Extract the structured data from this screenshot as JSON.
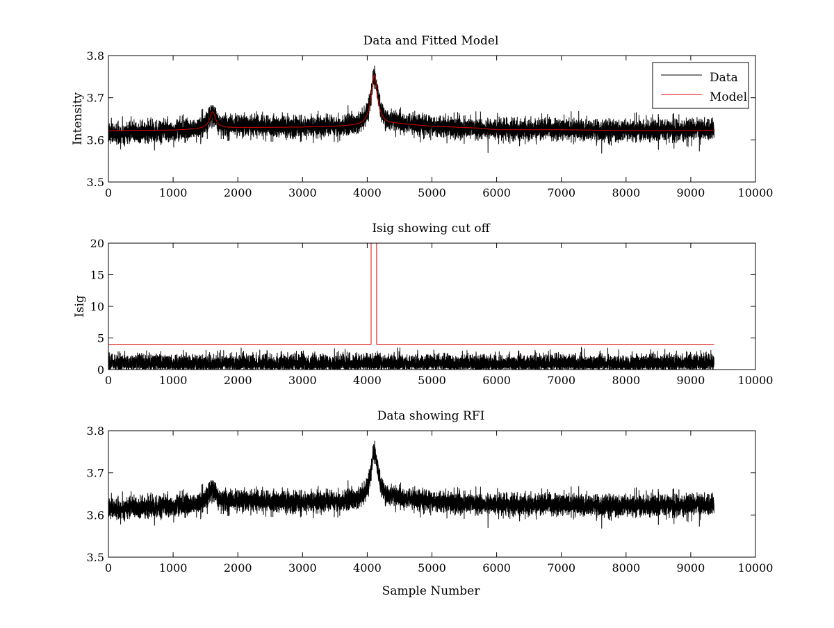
{
  "figure": {
    "background": "#ffffff"
  },
  "colors": {
    "data": "#000000",
    "model": "#e00000",
    "axis": "#000000"
  },
  "chart_data": [
    {
      "type": "line",
      "title": "Data and Fitted Model",
      "xlabel": "",
      "ylabel": "Intensity",
      "xlim": [
        0,
        10000
      ],
      "ylim": [
        3.5,
        3.8
      ],
      "xticks": [
        0,
        1000,
        2000,
        3000,
        4000,
        5000,
        6000,
        7000,
        8000,
        9000,
        10000
      ],
      "yticks": [
        3.5,
        3.6,
        3.7,
        3.8
      ],
      "legend": {
        "location": "top-right",
        "entries": [
          "Data",
          "Model"
        ]
      },
      "series": [
        {
          "name": "Data",
          "color": "#000000",
          "noise": {
            "n_points": 9360,
            "noise_amplitude": 0.012,
            "seed": 7
          },
          "baseline": {
            "x": [
              0,
              1000,
              1500,
              1750,
              2000,
              3000,
              4000,
              4500,
              5000,
              5500,
              6000,
              7000,
              8000,
              9000,
              9360
            ],
            "y": [
              3.615,
              3.62,
              3.628,
              3.633,
              3.633,
              3.63,
              3.632,
              3.64,
              3.632,
              3.628,
              3.624,
              3.626,
              3.622,
              3.624,
              3.625
            ]
          },
          "peaks": [
            {
              "center": 1610,
              "height": 0.035,
              "width": 60
            },
            {
              "center": 4110,
              "height": 0.115,
              "width": 70
            }
          ],
          "x_range": [
            0,
            9360
          ]
        },
        {
          "name": "Model",
          "color": "#e00000",
          "n_points": 9360,
          "baseline": {
            "x": [
              0,
              1000,
              1500,
              2000,
              3000,
              4000,
              4500,
              5000,
              5700,
              6000,
              7000,
              8000,
              9000,
              9360
            ],
            "y": [
              3.622,
              3.623,
              3.626,
              3.629,
              3.63,
              3.633,
              3.637,
              3.632,
              3.628,
              3.624,
              3.624,
              3.622,
              3.622,
              3.623
            ]
          },
          "peaks": [
            {
              "center": 1610,
              "height": 0.04,
              "width": 55
            },
            {
              "center": 4110,
              "height": 0.12,
              "width": 60
            }
          ],
          "x_range": [
            0,
            9360
          ]
        }
      ]
    },
    {
      "type": "line",
      "title": "Isig showing cut off",
      "xlabel": "",
      "ylabel": "Isig",
      "xlim": [
        0,
        10000
      ],
      "ylim": [
        0,
        20
      ],
      "xticks": [
        0,
        1000,
        2000,
        3000,
        4000,
        5000,
        6000,
        7000,
        8000,
        9000,
        10000
      ],
      "yticks": [
        0,
        5,
        10,
        15,
        20
      ],
      "series": [
        {
          "name": "Isig",
          "color": "#000000",
          "noise": {
            "n_points": 9360,
            "mean": 0.9,
            "noise_amplitude": 0.75,
            "max": 4.0,
            "seed": 13
          },
          "x_range": [
            0,
            9360
          ]
        },
        {
          "name": "Cut off",
          "color": "#e00000",
          "x": [
            0,
            4060,
            4060,
            4145,
            4145,
            9360
          ],
          "y": [
            4,
            4,
            20,
            20,
            4,
            4
          ]
        }
      ]
    },
    {
      "type": "line",
      "title": "Data showing RFI",
      "xlabel": "Sample Number",
      "ylabel": "",
      "xlim": [
        0,
        10000
      ],
      "ylim": [
        3.5,
        3.8
      ],
      "xticks": [
        0,
        1000,
        2000,
        3000,
        4000,
        5000,
        6000,
        7000,
        8000,
        9000,
        10000
      ],
      "yticks": [
        3.5,
        3.6,
        3.7,
        3.8
      ],
      "series": [
        {
          "name": "Data",
          "color": "#000000",
          "noise": {
            "n_points": 9360,
            "noise_amplitude": 0.012,
            "seed": 7
          },
          "baseline": {
            "x": [
              0,
              1000,
              1500,
              1750,
              2000,
              3000,
              4000,
              4500,
              5000,
              5500,
              6000,
              7000,
              8000,
              9000,
              9360
            ],
            "y": [
              3.615,
              3.62,
              3.628,
              3.633,
              3.633,
              3.63,
              3.632,
              3.64,
              3.632,
              3.628,
              3.624,
              3.626,
              3.622,
              3.624,
              3.625
            ]
          },
          "peaks": [
            {
              "center": 1610,
              "height": 0.035,
              "width": 60
            },
            {
              "center": 4110,
              "height": 0.115,
              "width": 70
            }
          ],
          "x_range": [
            0,
            9360
          ]
        }
      ]
    }
  ]
}
